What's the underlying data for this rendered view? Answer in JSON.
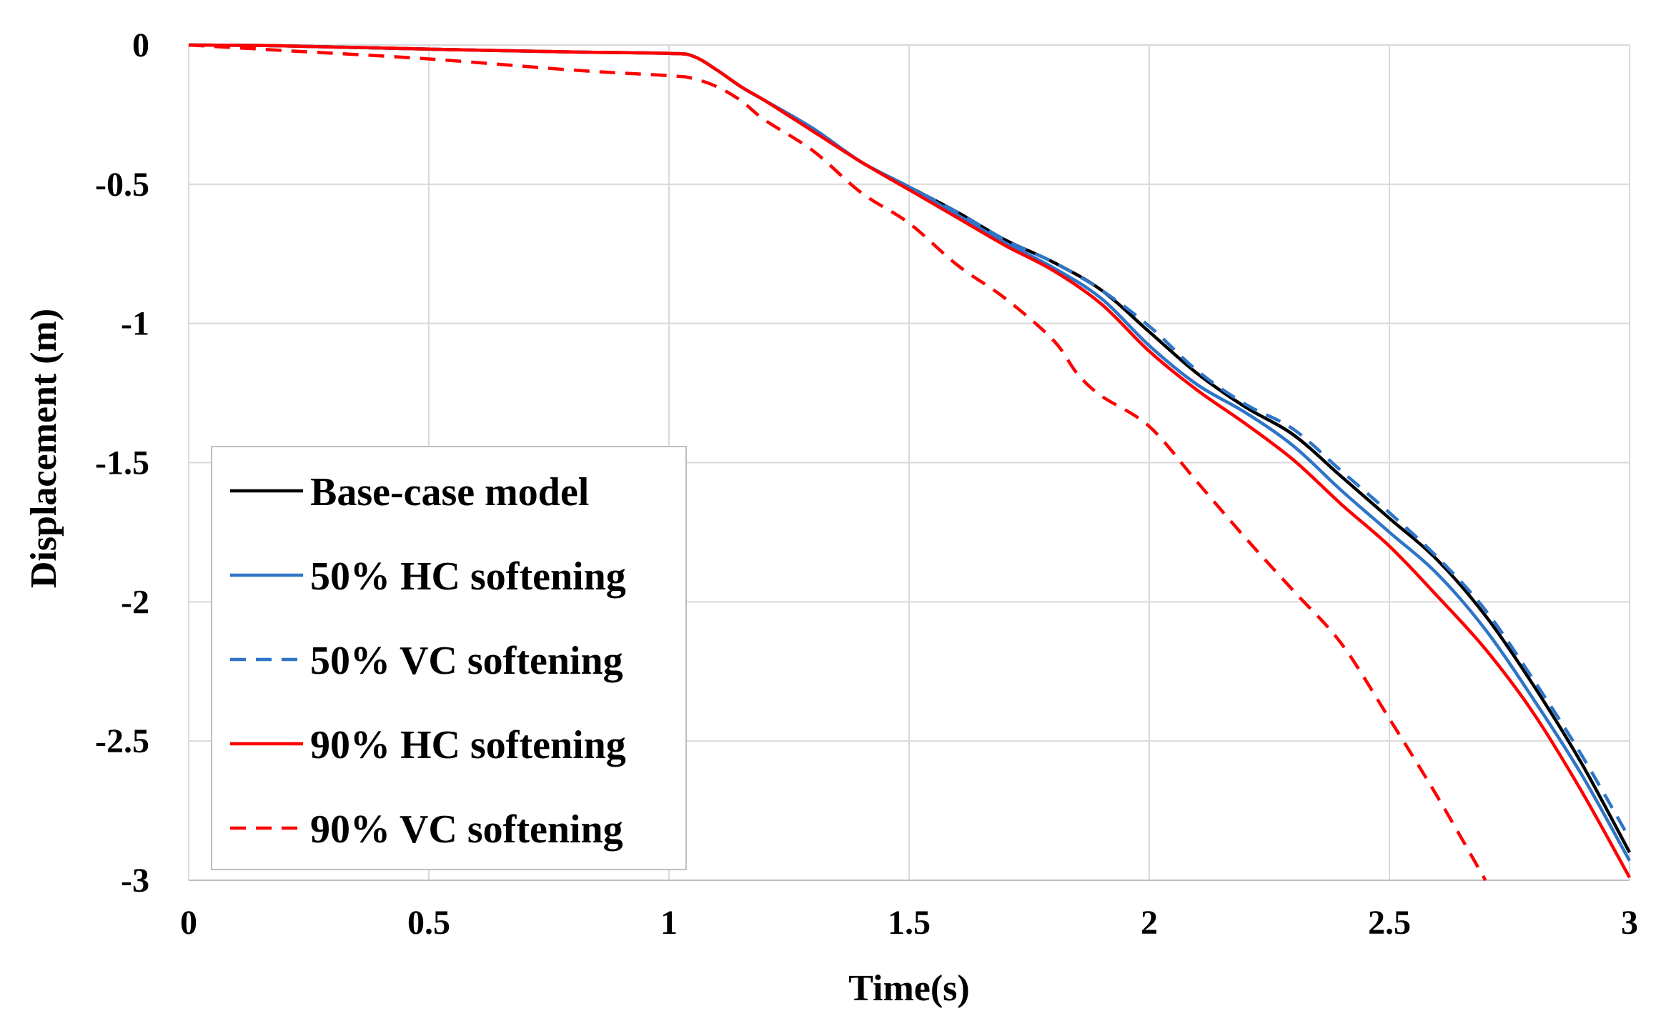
{
  "chart_data": {
    "type": "line",
    "title": "",
    "xlabel": "Time(s)",
    "ylabel": "Displacement (m)",
    "xlim": [
      0,
      3
    ],
    "ylim": [
      -3,
      0
    ],
    "x_ticks": [
      "0",
      "0.5",
      "1",
      "1.5",
      "2",
      "2.5",
      "3"
    ],
    "y_ticks": [
      "0",
      "-0.5",
      "-1",
      "-1.5",
      "-2",
      "-2.5",
      "-3"
    ],
    "grid": true,
    "legend_position": "lower-left",
    "series": [
      {
        "name": "Base-case model",
        "color": "#000000",
        "dash": "solid",
        "x": [
          0,
          0.2,
          0.5,
          0.8,
          1.0,
          1.05,
          1.1,
          1.15,
          1.2,
          1.3,
          1.4,
          1.5,
          1.6,
          1.7,
          1.8,
          1.9,
          2.0,
          2.1,
          2.2,
          2.3,
          2.4,
          2.5,
          2.6,
          2.7,
          2.8,
          2.9,
          3.0
        ],
        "y": [
          0,
          -0.003,
          -0.015,
          -0.025,
          -0.03,
          -0.04,
          -0.09,
          -0.15,
          -0.2,
          -0.3,
          -0.42,
          -0.51,
          -0.6,
          -0.7,
          -0.78,
          -0.88,
          -1.03,
          -1.18,
          -1.3,
          -1.4,
          -1.55,
          -1.7,
          -1.85,
          -2.05,
          -2.3,
          -2.58,
          -2.9
        ]
      },
      {
        "name": "50% HC softening",
        "color": "#2e75c8",
        "dash": "solid",
        "x": [
          0,
          0.2,
          0.5,
          0.8,
          1.0,
          1.05,
          1.1,
          1.15,
          1.2,
          1.3,
          1.4,
          1.5,
          1.6,
          1.7,
          1.8,
          1.9,
          2.0,
          2.1,
          2.2,
          2.3,
          2.4,
          2.5,
          2.6,
          2.7,
          2.8,
          2.9,
          3.0
        ],
        "y": [
          0,
          -0.003,
          -0.015,
          -0.025,
          -0.03,
          -0.04,
          -0.09,
          -0.15,
          -0.2,
          -0.3,
          -0.42,
          -0.51,
          -0.61,
          -0.71,
          -0.8,
          -0.91,
          -1.08,
          -1.22,
          -1.32,
          -1.44,
          -1.6,
          -1.75,
          -1.9,
          -2.1,
          -2.35,
          -2.62,
          -2.93
        ]
      },
      {
        "name": "50% VC softening",
        "color": "#2e75c8",
        "dash": "dashed",
        "x": [
          0,
          0.2,
          0.5,
          0.8,
          1.0,
          1.05,
          1.1,
          1.15,
          1.2,
          1.3,
          1.4,
          1.5,
          1.6,
          1.7,
          1.8,
          1.9,
          2.0,
          2.1,
          2.2,
          2.3,
          2.4,
          2.5,
          2.6,
          2.7,
          2.8,
          2.9,
          3.0
        ],
        "y": [
          0,
          -0.003,
          -0.015,
          -0.025,
          -0.03,
          -0.04,
          -0.09,
          -0.15,
          -0.2,
          -0.3,
          -0.42,
          -0.51,
          -0.6,
          -0.7,
          -0.78,
          -0.88,
          -1.01,
          -1.17,
          -1.29,
          -1.38,
          -1.53,
          -1.68,
          -1.84,
          -2.03,
          -2.28,
          -2.55,
          -2.85
        ]
      },
      {
        "name": "90% HC softening",
        "color": "#ff0000",
        "dash": "solid",
        "x": [
          0,
          0.2,
          0.5,
          0.8,
          1.0,
          1.05,
          1.1,
          1.15,
          1.2,
          1.3,
          1.4,
          1.5,
          1.6,
          1.7,
          1.8,
          1.9,
          2.0,
          2.1,
          2.2,
          2.3,
          2.4,
          2.5,
          2.6,
          2.7,
          2.8,
          2.9,
          3.0
        ],
        "y": [
          0,
          -0.003,
          -0.015,
          -0.025,
          -0.03,
          -0.04,
          -0.09,
          -0.15,
          -0.2,
          -0.31,
          -0.42,
          -0.52,
          -0.62,
          -0.72,
          -0.81,
          -0.93,
          -1.1,
          -1.24,
          -1.36,
          -1.49,
          -1.65,
          -1.8,
          -1.98,
          -2.17,
          -2.4,
          -2.68,
          -2.99
        ]
      },
      {
        "name": "90% VC softening",
        "color": "#ff0000",
        "dash": "dashed",
        "x": [
          0,
          0.2,
          0.5,
          0.8,
          1.0,
          1.05,
          1.1,
          1.15,
          1.2,
          1.3,
          1.4,
          1.5,
          1.6,
          1.7,
          1.8,
          1.85,
          1.9,
          2.0,
          2.1,
          2.2,
          2.3,
          2.4,
          2.5,
          2.6,
          2.7
        ],
        "y": [
          0,
          -0.02,
          -0.05,
          -0.09,
          -0.11,
          -0.12,
          -0.15,
          -0.2,
          -0.27,
          -0.38,
          -0.53,
          -0.64,
          -0.79,
          -0.91,
          -1.06,
          -1.18,
          -1.26,
          -1.37,
          -1.57,
          -1.77,
          -1.96,
          -2.15,
          -2.42,
          -2.7,
          -3.0
        ]
      }
    ]
  }
}
